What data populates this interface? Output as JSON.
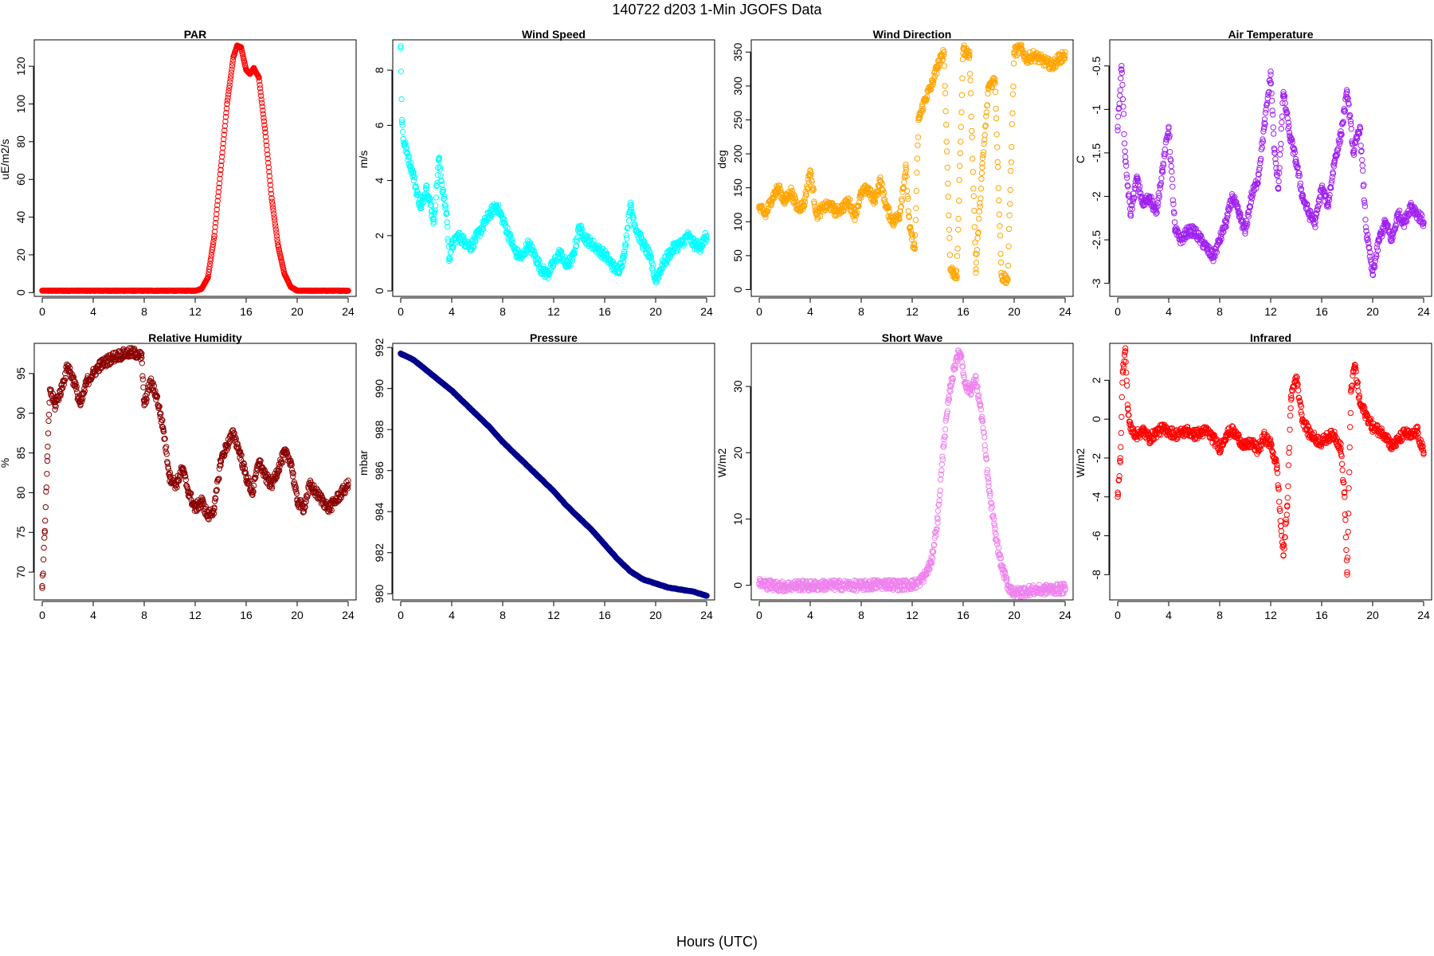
{
  "figure": {
    "title": "140722   d203   1-Min  JGOFS Data",
    "xlabel": "Hours (UTC)"
  },
  "chart_data": [
    {
      "type": "scatter",
      "title": "PAR",
      "xlabel": "",
      "ylabel": "uE/m2/s",
      "color": "#ff0000",
      "xlim": [
        0,
        24
      ],
      "xticks": [
        0,
        4,
        8,
        12,
        16,
        20,
        24
      ],
      "ylim": [
        -2,
        134
      ],
      "yticks": [
        0,
        20,
        40,
        60,
        80,
        100,
        120
      ],
      "series": [
        {
          "x": [
            0,
            2,
            4,
            6,
            8,
            10,
            12,
            12.5,
            13,
            13.5,
            14,
            14.5,
            15,
            15.3,
            15.6,
            16,
            16.3,
            16.6,
            17,
            17.5,
            18,
            18.5,
            19,
            19.5,
            20,
            21,
            22,
            23,
            24
          ],
          "y": [
            1,
            1,
            1,
            1,
            1,
            1,
            1,
            2,
            8,
            30,
            65,
            100,
            125,
            131,
            130,
            118,
            116,
            119,
            114,
            85,
            50,
            25,
            10,
            3,
            1,
            1,
            1,
            1,
            1
          ]
        }
      ]
    },
    {
      "type": "scatter",
      "title": "Wind Speed",
      "xlabel": "",
      "ylabel": "m/s",
      "color": "#00ffff",
      "xlim": [
        0,
        24
      ],
      "xticks": [
        0,
        4,
        8,
        12,
        16,
        20,
        24
      ],
      "ylim": [
        -0.2,
        9.1
      ],
      "yticks": [
        0,
        2,
        4,
        6,
        8
      ],
      "series": [
        {
          "x": [
            0,
            0.1,
            0.2,
            0.5,
            0.8,
            1.0,
            1.3,
            1.6,
            2.0,
            2.3,
            2.6,
            3.0,
            3.3,
            3.6,
            3.8,
            4.0,
            4.5,
            5.0,
            5.5,
            6.0,
            6.5,
            7.0,
            7.5,
            8.0,
            8.5,
            9.0,
            9.5,
            10.0,
            10.5,
            11.0,
            11.5,
            12.0,
            12.5,
            13.0,
            13.5,
            14.0,
            14.5,
            15.0,
            15.5,
            16.0,
            16.5,
            17.0,
            17.5,
            18.0,
            18.5,
            19.0,
            19.5,
            20.0,
            20.5,
            21.0,
            21.5,
            22.0,
            22.5,
            23.0,
            23.5,
            24.0
          ],
          "y": [
            8.8,
            6.2,
            5.5,
            5.0,
            4.5,
            4.2,
            3.5,
            3.0,
            3.8,
            3.2,
            2.5,
            4.8,
            3.6,
            2.8,
            1.2,
            1.6,
            2.0,
            1.8,
            1.6,
            2.0,
            2.4,
            2.8,
            3.1,
            2.6,
            2.0,
            1.4,
            1.2,
            1.7,
            1.3,
            0.8,
            0.6,
            1.0,
            1.4,
            0.9,
            1.2,
            2.3,
            1.9,
            1.7,
            1.5,
            1.3,
            1.0,
            0.7,
            1.2,
            3.1,
            2.2,
            1.7,
            1.3,
            0.4,
            0.9,
            1.3,
            1.6,
            1.7,
            2.0,
            1.7,
            1.6,
            2.0
          ]
        }
      ]
    },
    {
      "type": "scatter",
      "title": "Wind Direction",
      "xlabel": "",
      "ylabel": "deg",
      "color": "#ffa500",
      "xlim": [
        0,
        24
      ],
      "xticks": [
        0,
        4,
        8,
        12,
        16,
        20,
        24
      ],
      "ylim": [
        -10,
        368
      ],
      "yticks": [
        0,
        50,
        100,
        150,
        200,
        250,
        300,
        350
      ],
      "series": [
        {
          "x": [
            0,
            0.5,
            1.0,
            1.5,
            2.0,
            2.5,
            3.0,
            3.5,
            4.0,
            4.5,
            5.0,
            5.5,
            6.0,
            6.5,
            7.0,
            7.5,
            8.0,
            8.5,
            9.0,
            9.5,
            10.0,
            10.5,
            11.0,
            11.5,
            11.8,
            12.2,
            12.5,
            13.0,
            13.5,
            14.0,
            14.5,
            15.0,
            15.5,
            16.0,
            16.5,
            17.0,
            17.5,
            18.0,
            18.5,
            19.0,
            19.5,
            20.0,
            20.5,
            21.0,
            21.5,
            22.0,
            22.5,
            23.0,
            23.5,
            24.0
          ],
          "y": [
            120,
            110,
            135,
            150,
            130,
            145,
            120,
            125,
            175,
            110,
            120,
            125,
            115,
            120,
            130,
            110,
            140,
            150,
            130,
            160,
            120,
            100,
            110,
            180,
            90,
            60,
            250,
            280,
            300,
            330,
            350,
            30,
            20,
            355,
            345,
            30,
            180,
            300,
            310,
            20,
            15,
            350,
            355,
            340,
            345,
            340,
            335,
            330,
            340,
            345
          ]
        }
      ]
    },
    {
      "type": "scatter",
      "title": "Air Temperature",
      "xlabel": "",
      "ylabel": "C",
      "color": "#a020f0",
      "xlim": [
        0,
        24
      ],
      "xticks": [
        0,
        4,
        8,
        12,
        16,
        20,
        24
      ],
      "ylim": [
        -3.15,
        -0.2
      ],
      "yticks": [
        -3.0,
        -2.5,
        -2.0,
        -1.5,
        -1.0,
        -0.5
      ],
      "series": [
        {
          "x": [
            0,
            0.3,
            0.6,
            1.0,
            1.5,
            2.0,
            2.5,
            3.0,
            3.5,
            4.0,
            4.5,
            5.0,
            5.5,
            6.0,
            6.5,
            7.0,
            7.5,
            8.0,
            8.5,
            9.0,
            9.5,
            10.0,
            10.5,
            11.0,
            11.5,
            12.0,
            12.3,
            12.6,
            13.0,
            13.5,
            14.0,
            14.5,
            15.0,
            15.5,
            16.0,
            16.5,
            17.0,
            17.5,
            18.0,
            18.5,
            19.0,
            19.5,
            20.0,
            20.5,
            21.0,
            21.5,
            22.0,
            22.5,
            23.0,
            23.5,
            24.0
          ],
          "y": [
            -1.2,
            -0.5,
            -1.6,
            -2.2,
            -1.8,
            -2.1,
            -2.0,
            -2.2,
            -1.7,
            -1.2,
            -2.4,
            -2.5,
            -2.4,
            -2.4,
            -2.5,
            -2.6,
            -2.7,
            -2.5,
            -2.3,
            -2.0,
            -2.2,
            -2.4,
            -2.0,
            -1.8,
            -1.2,
            -0.6,
            -1.5,
            -1.9,
            -0.8,
            -1.3,
            -1.6,
            -2.0,
            -2.2,
            -2.3,
            -1.9,
            -2.1,
            -1.6,
            -1.3,
            -0.8,
            -1.5,
            -1.2,
            -2.4,
            -2.9,
            -2.5,
            -2.3,
            -2.5,
            -2.2,
            -2.3,
            -2.1,
            -2.2,
            -2.3
          ]
        }
      ]
    },
    {
      "type": "scatter",
      "title": "Relative Humidity",
      "xlabel": "",
      "ylabel": "%",
      "color": "#8b0000",
      "xlim": [
        0,
        24
      ],
      "xticks": [
        0,
        4,
        8,
        12,
        16,
        20,
        24
      ],
      "ylim": [
        66.5,
        98.8
      ],
      "yticks": [
        70,
        75,
        80,
        85,
        90,
        95
      ],
      "series": [
        {
          "x": [
            0,
            0.2,
            0.4,
            0.6,
            1.0,
            1.5,
            2.0,
            2.5,
            3.0,
            3.5,
            4.0,
            4.5,
            5.0,
            5.5,
            6.0,
            6.5,
            7.0,
            7.5,
            7.8,
            8.0,
            8.5,
            9.0,
            9.5,
            10.0,
            10.5,
            11.0,
            11.5,
            12.0,
            12.5,
            13.0,
            13.5,
            14.0,
            14.5,
            15.0,
            15.5,
            16.0,
            16.5,
            17.0,
            17.5,
            18.0,
            18.5,
            19.0,
            19.5,
            20.0,
            20.5,
            21.0,
            21.5,
            22.0,
            22.5,
            23.0,
            23.5,
            24.0
          ],
          "y": [
            68,
            75,
            84,
            93,
            91,
            93,
            96,
            94,
            91,
            94,
            95,
            96,
            96.5,
            97,
            97.3,
            97.5,
            97.6,
            97.5,
            97,
            91,
            94,
            92,
            88,
            82,
            81,
            83,
            80,
            78,
            79,
            77,
            78,
            84,
            86,
            87.5,
            85,
            82,
            80,
            84,
            82,
            81,
            83,
            85,
            84,
            79,
            78,
            81,
            80,
            79,
            78,
            79,
            80,
            81
          ]
        }
      ]
    },
    {
      "type": "scatter",
      "title": "Pressure",
      "xlabel": "",
      "ylabel": "mbar",
      "color": "#00008b",
      "xlim": [
        0,
        24
      ],
      "xticks": [
        0,
        4,
        8,
        12,
        16,
        20,
        24
      ],
      "ylim": [
        979.7,
        992.2
      ],
      "yticks": [
        980,
        982,
        984,
        986,
        988,
        990,
        992
      ],
      "series": [
        {
          "x": [
            0,
            1,
            2,
            3,
            4,
            5,
            6,
            7,
            8,
            9,
            10,
            11,
            12,
            13,
            14,
            15,
            16,
            17,
            18,
            19,
            20,
            21,
            22,
            23,
            24
          ],
          "y": [
            991.7,
            991.4,
            990.9,
            990.4,
            989.9,
            989.3,
            988.7,
            988.1,
            987.4,
            986.8,
            986.2,
            985.6,
            985.0,
            984.3,
            983.7,
            983.1,
            982.4,
            981.7,
            981.1,
            980.7,
            980.5,
            980.3,
            980.2,
            980.1,
            979.9
          ]
        }
      ]
    },
    {
      "type": "scatter",
      "title": "Short Wave",
      "xlabel": "",
      "ylabel": "W/m2",
      "color": "#ee82ee",
      "xlim": [
        0,
        24
      ],
      "xticks": [
        0,
        4,
        8,
        12,
        16,
        20,
        24
      ],
      "ylim": [
        -2.2,
        36.5
      ],
      "yticks": [
        0,
        10,
        20,
        30
      ],
      "series": [
        {
          "x": [
            0,
            1,
            2,
            3,
            4,
            5,
            6,
            7,
            8,
            9,
            10,
            11,
            12,
            12.5,
            13,
            13.5,
            14,
            14.5,
            15,
            15.5,
            15.8,
            16.2,
            16.6,
            17,
            17.5,
            18,
            18.5,
            19,
            19.5,
            20,
            21,
            22,
            23,
            24
          ],
          "y": [
            0.3,
            0,
            -0.2,
            0,
            -0.1,
            0,
            0,
            0,
            -0.1,
            0.1,
            0.2,
            0,
            0.1,
            0.4,
            1.5,
            3.5,
            10,
            22,
            30,
            34.5,
            35,
            30,
            29.5,
            31,
            25,
            15,
            8,
            3,
            0,
            -1.2,
            -0.8,
            -0.7,
            -0.6,
            -0.5
          ]
        }
      ]
    },
    {
      "type": "scatter",
      "title": "Infrared",
      "xlabel": "",
      "ylabel": "W/m2",
      "color": "#ff0000",
      "xlim": [
        0,
        24
      ],
      "xticks": [
        0,
        4,
        8,
        12,
        16,
        20,
        24
      ],
      "ylim": [
        -9.3,
        3.9
      ],
      "yticks": [
        -8,
        -6,
        -4,
        -2,
        0,
        2
      ],
      "series": [
        {
          "x": [
            0,
            0.2,
            0.4,
            0.6,
            0.8,
            1.0,
            1.5,
            2.0,
            2.5,
            3.0,
            3.5,
            4.0,
            4.5,
            5.0,
            5.5,
            6.0,
            6.5,
            7.0,
            7.5,
            8.0,
            8.5,
            9.0,
            9.5,
            10.0,
            10.5,
            11.0,
            11.5,
            12.0,
            12.5,
            12.8,
            13.0,
            13.3,
            13.6,
            14.0,
            14.5,
            15.0,
            15.5,
            16.0,
            16.5,
            17.0,
            17.5,
            17.8,
            18.0,
            18.3,
            18.6,
            19.0,
            19.5,
            20.0,
            20.5,
            21.0,
            21.5,
            22.0,
            22.5,
            23.0,
            23.5,
            24.0
          ],
          "y": [
            -4,
            -2,
            2.5,
            3.5,
            0.5,
            -0.5,
            -0.8,
            -0.6,
            -1.0,
            -0.7,
            -0.5,
            -0.6,
            -0.8,
            -0.7,
            -0.6,
            -0.8,
            -0.7,
            -0.6,
            -1.0,
            -1.5,
            -0.8,
            -0.6,
            -1.0,
            -1.4,
            -1.2,
            -1.6,
            -0.9,
            -1.3,
            -2.5,
            -5.5,
            -7.0,
            -4.5,
            1.2,
            2.2,
            0,
            -0.7,
            -1.0,
            -1.2,
            -0.9,
            -0.8,
            -1.5,
            -4.0,
            -8.0,
            1.5,
            2.8,
            0.8,
            0.2,
            -0.4,
            -0.6,
            -0.8,
            -1.4,
            -1.1,
            -0.7,
            -0.9,
            -0.6,
            -1.8
          ]
        }
      ]
    }
  ]
}
